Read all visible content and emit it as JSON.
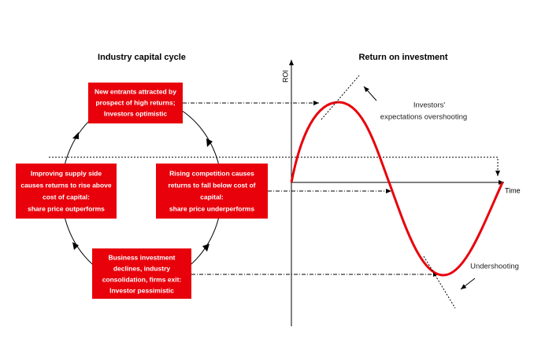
{
  "left_title": "Industry capital cycle",
  "right_title": "Return on investment",
  "boxes": [
    {
      "lines": [
        "New entrants attracted by",
        "prospect of high returns;",
        "Investors optimistic"
      ]
    },
    {
      "lines": [
        "Rising competition causes",
        "returns to fall below cost of",
        "capital:",
        "share price underperforms"
      ]
    },
    {
      "lines": [
        "Business investment",
        "declines, industry",
        "consolidation, firms exit:",
        "Investor pessimistic"
      ]
    },
    {
      "lines": [
        "Improving supply side",
        "causes returns to rise above",
        "cost of capital:",
        "share price outperforms"
      ]
    }
  ],
  "chart": {
    "y_label": "ROI",
    "x_label": "Time",
    "annotations": [
      [
        "Investors'",
        "expectations overshooting"
      ],
      [
        "Undershooting"
      ]
    ]
  }
}
